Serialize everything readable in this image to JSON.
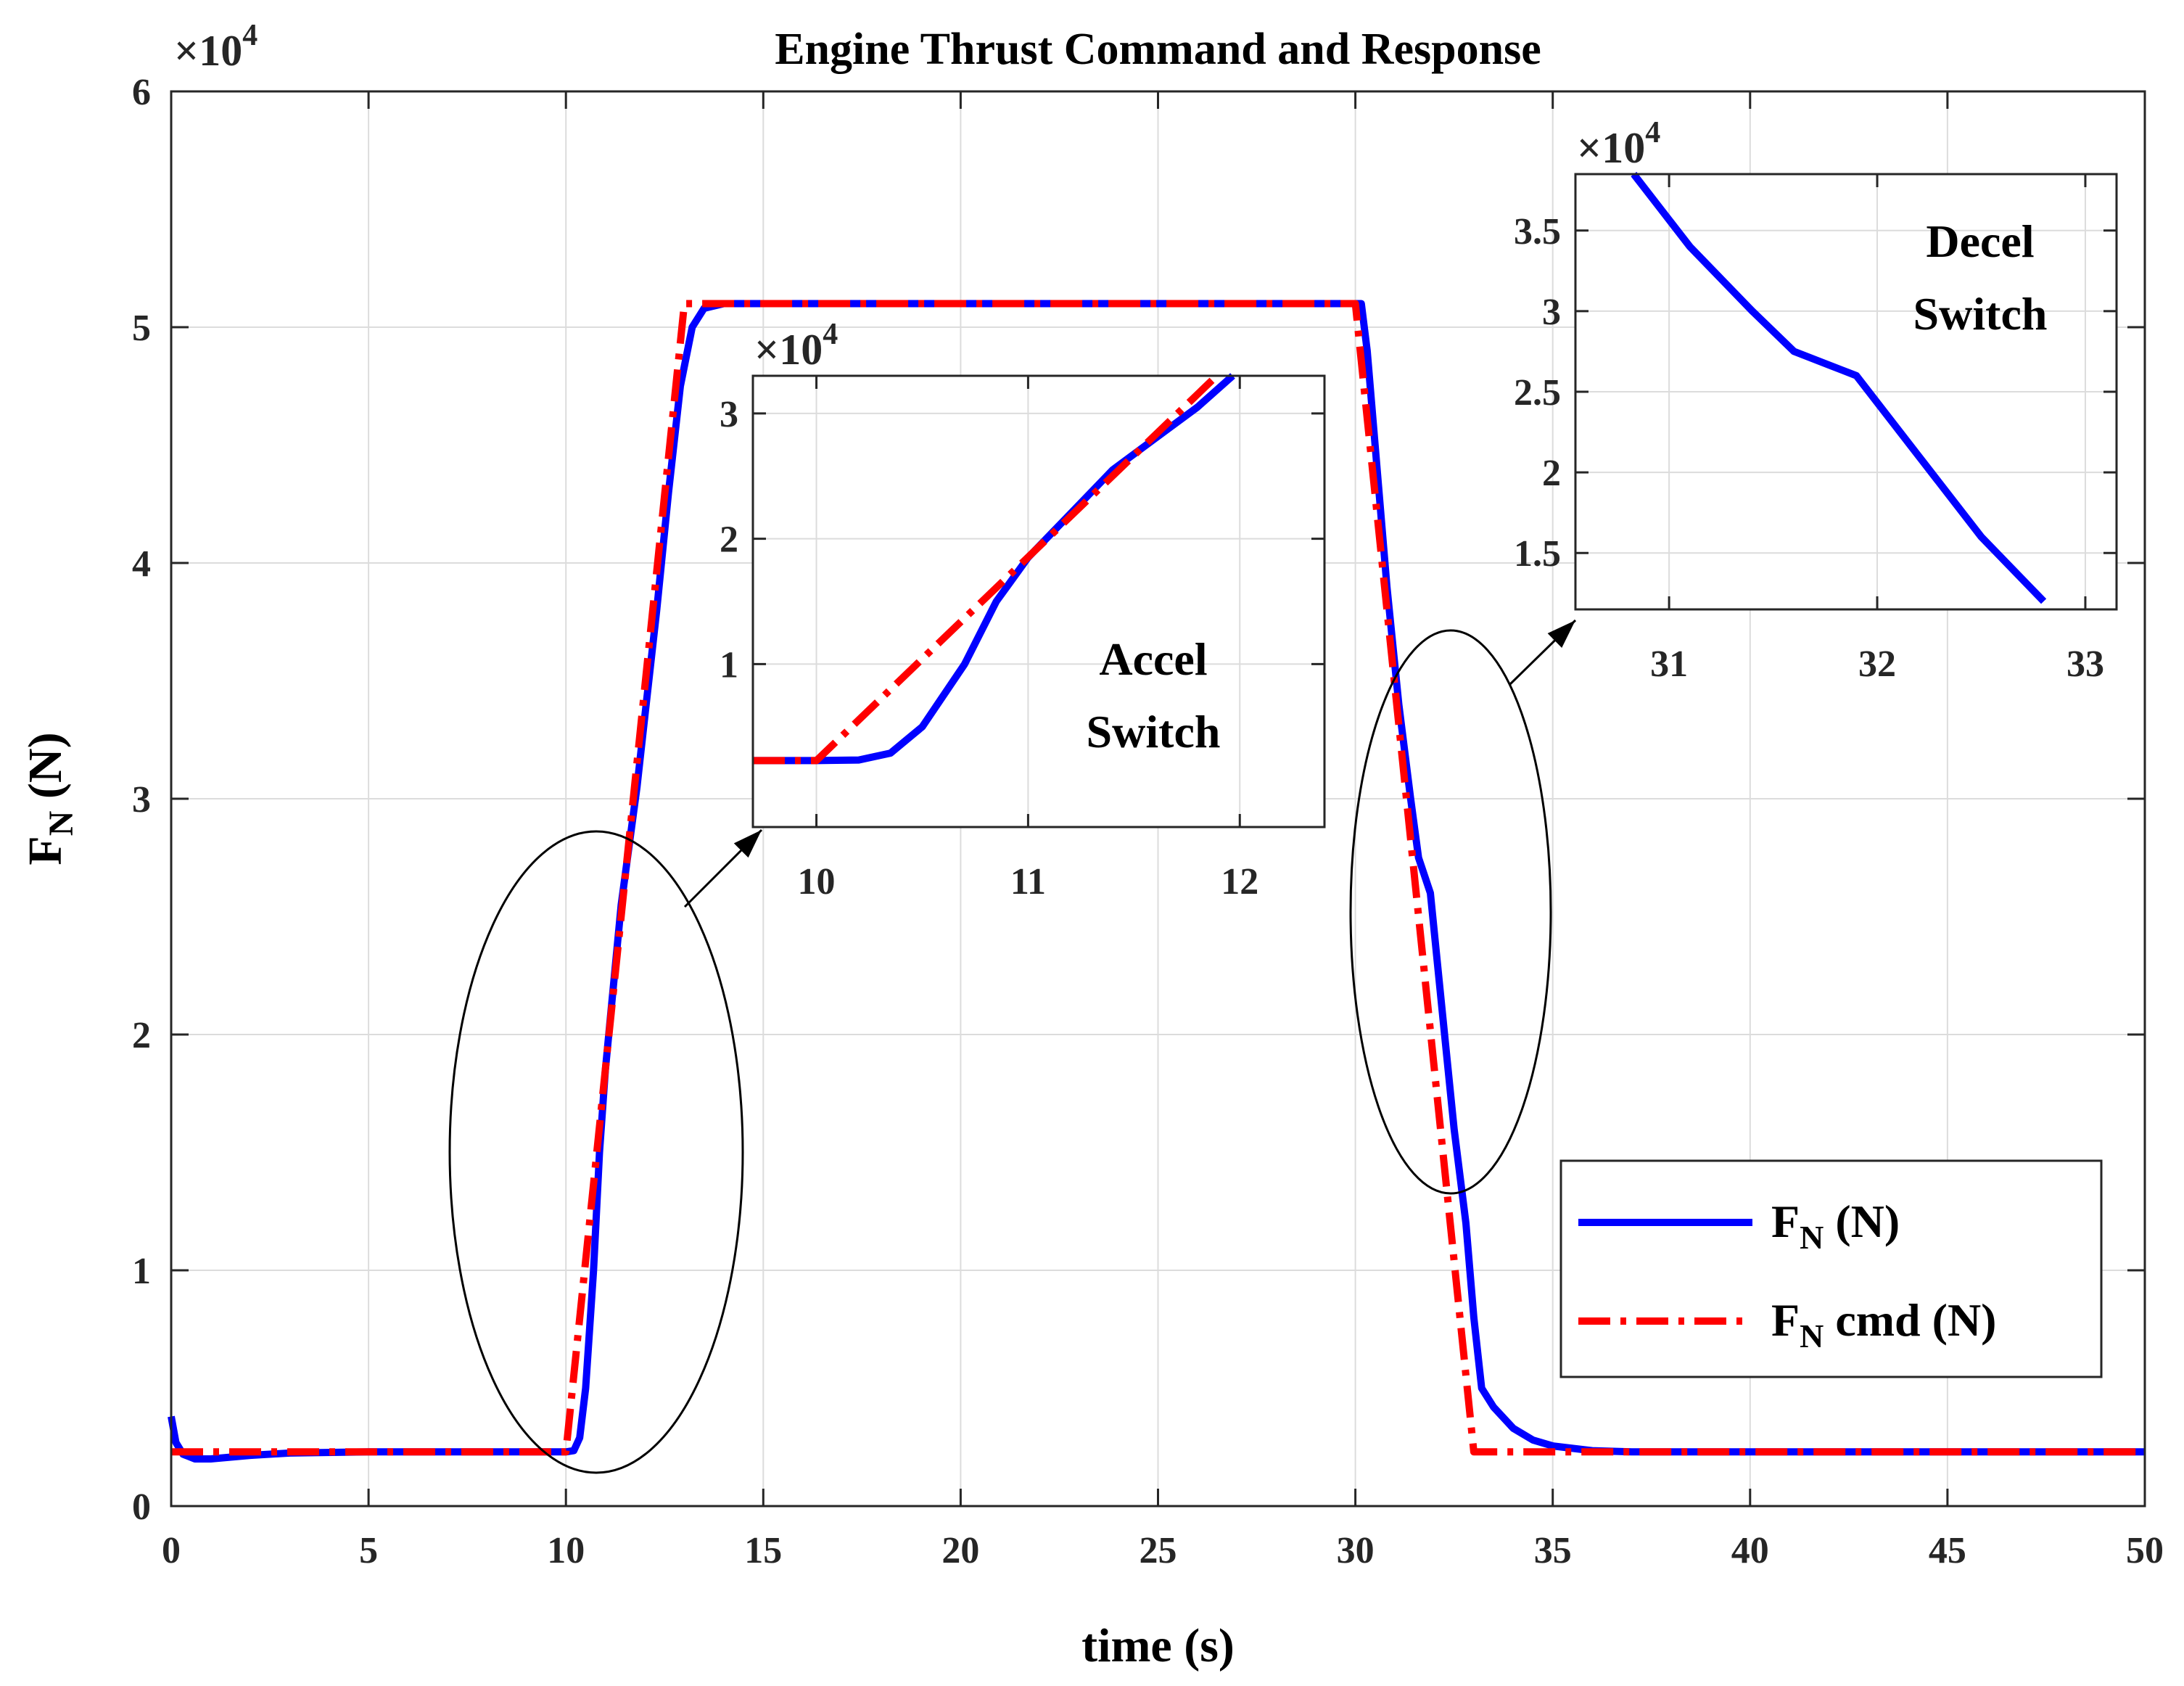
{
  "chart_data": {
    "type": "line",
    "title": "Engine Thrust Command and Response",
    "xlabel": "time (s)",
    "ylabel": "F",
    "ylabel_sub": "N",
    "ylabel_unit": " (N)",
    "xlim": [
      0,
      50
    ],
    "ylim": [
      0,
      60000
    ],
    "x_ticks": [
      0,
      5,
      10,
      15,
      20,
      25,
      30,
      35,
      40,
      45,
      50
    ],
    "x_tick_labels": [
      "0",
      "5",
      "10",
      "15",
      "20",
      "25",
      "30",
      "35",
      "40",
      "45",
      "50"
    ],
    "y_ticks": [
      0,
      10000,
      20000,
      30000,
      40000,
      50000,
      60000
    ],
    "y_tick_labels": [
      "0",
      "1",
      "2",
      "3",
      "4",
      "5",
      "6"
    ],
    "y_multiplier": {
      "base": "×10",
      "exp": "4"
    },
    "grid": true,
    "legend": {
      "location": "bottom-right",
      "entries": [
        {
          "main": "F",
          "sub": "N",
          "rest": " (N)",
          "color": "#0000ff",
          "style": "solid"
        },
        {
          "main": "F",
          "sub": "N",
          "rest": " cmd (N)",
          "color": "#ff0000",
          "style": "dashdot"
        }
      ]
    },
    "series": [
      {
        "name": "FN (N)",
        "color": "#0000ff",
        "style": "solid",
        "points": [
          [
            0,
            3800
          ],
          [
            0.12,
            2700
          ],
          [
            0.3,
            2200
          ],
          [
            0.6,
            2000
          ],
          [
            1,
            2000
          ],
          [
            2,
            2150
          ],
          [
            3,
            2250
          ],
          [
            5,
            2300
          ],
          [
            8,
            2300
          ],
          [
            10,
            2300
          ],
          [
            10.2,
            2350
          ],
          [
            10.35,
            2900
          ],
          [
            10.5,
            5000
          ],
          [
            10.7,
            10000
          ],
          [
            10.85,
            15000
          ],
          [
            11,
            18500
          ],
          [
            11.2,
            22000
          ],
          [
            11.4,
            25500
          ],
          [
            11.6,
            28000
          ],
          [
            11.8,
            30500
          ],
          [
            12,
            33500
          ],
          [
            12.3,
            38000
          ],
          [
            12.6,
            43000
          ],
          [
            12.9,
            47500
          ],
          [
            13.2,
            50000
          ],
          [
            13.5,
            50800
          ],
          [
            14,
            51000
          ],
          [
            20,
            51000
          ],
          [
            30,
            51000
          ],
          [
            30.15,
            51000
          ],
          [
            30.3,
            49000
          ],
          [
            30.5,
            45000
          ],
          [
            30.8,
            39000
          ],
          [
            31.1,
            34000
          ],
          [
            31.4,
            30000
          ],
          [
            31.6,
            27500
          ],
          [
            31.9,
            26000
          ],
          [
            32.2,
            21000
          ],
          [
            32.5,
            16000
          ],
          [
            32.8,
            12000
          ],
          [
            33,
            8000
          ],
          [
            33.2,
            5000
          ],
          [
            33.5,
            4200
          ],
          [
            34,
            3300
          ],
          [
            34.5,
            2800
          ],
          [
            35,
            2550
          ],
          [
            36,
            2350
          ],
          [
            37,
            2300
          ],
          [
            50,
            2300
          ]
        ]
      },
      {
        "name": "FN cmd (N)",
        "color": "#ff0000",
        "style": "dashdot",
        "points": [
          [
            0,
            2300
          ],
          [
            10,
            2300
          ],
          [
            13,
            51000
          ],
          [
            30,
            51000
          ],
          [
            33,
            2300
          ],
          [
            50,
            2300
          ]
        ]
      }
    ],
    "annotations": [
      {
        "text_lines": [
          "Accel",
          "Switch"
        ],
        "target": "inset-accel"
      },
      {
        "text_lines": [
          "Decel",
          "Switch"
        ],
        "target": "inset-decel"
      }
    ],
    "insets": [
      {
        "id": "inset-accel",
        "xlim": [
          9.7,
          12.4
        ],
        "ylim": [
          -3000,
          33000
        ],
        "x_ticks": [
          10,
          11,
          12
        ],
        "x_tick_labels": [
          "10",
          "11",
          "12"
        ],
        "y_ticks": [
          10000,
          20000,
          30000
        ],
        "y_tick_labels": [
          "1",
          "2",
          "3"
        ]
      },
      {
        "id": "inset-decel",
        "xlim": [
          30.55,
          33.15
        ],
        "ylim": [
          11500,
          38500
        ],
        "x_ticks": [
          31,
          32,
          33
        ],
        "x_tick_labels": [
          "31",
          "32",
          "33"
        ],
        "y_ticks": [
          15000,
          20000,
          25000,
          30000,
          35000
        ],
        "y_tick_labels": [
          "1.5",
          "2",
          "2.5",
          "3",
          "3.5"
        ]
      }
    ]
  }
}
